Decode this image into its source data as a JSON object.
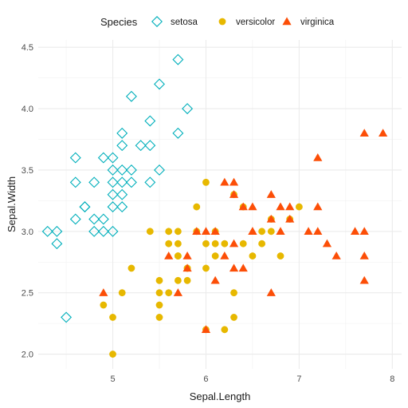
{
  "chart_data": {
    "type": "scatter",
    "xlabel": "Sepal.Length",
    "ylabel": "Sepal.Width",
    "xlim": [
      4.2,
      8.1
    ],
    "ylim": [
      1.88,
      4.56
    ],
    "x_ticks": [
      5,
      6,
      7,
      8
    ],
    "y_ticks": [
      2.0,
      2.5,
      3.0,
      3.5,
      4.0,
      4.5
    ],
    "x_tick_labels": [
      "5",
      "6",
      "7",
      "8"
    ],
    "y_tick_labels": [
      "2.0",
      "2.5",
      "3.0",
      "3.5",
      "4.0",
      "4.5"
    ],
    "grid": true,
    "legend": {
      "title": "Species",
      "position": "top"
    },
    "series": [
      {
        "name": "setosa",
        "color": "#00AFBB",
        "marker": "diamond-open",
        "points": [
          [
            5.1,
            3.5
          ],
          [
            4.9,
            3.0
          ],
          [
            4.7,
            3.2
          ],
          [
            4.6,
            3.1
          ],
          [
            5.0,
            3.6
          ],
          [
            5.4,
            3.9
          ],
          [
            4.6,
            3.4
          ],
          [
            5.0,
            3.4
          ],
          [
            4.4,
            2.9
          ],
          [
            4.9,
            3.1
          ],
          [
            5.4,
            3.7
          ],
          [
            4.8,
            3.4
          ],
          [
            4.8,
            3.0
          ],
          [
            4.3,
            3.0
          ],
          [
            5.8,
            4.0
          ],
          [
            5.7,
            4.4
          ],
          [
            5.1,
            3.8
          ],
          [
            5.7,
            3.8
          ],
          [
            5.2,
            4.1
          ],
          [
            5.5,
            4.2
          ],
          [
            5.2,
            3.5
          ],
          [
            5.0,
            3.2
          ],
          [
            4.4,
            3.0
          ],
          [
            5.1,
            3.4
          ],
          [
            5.0,
            3.5
          ],
          [
            4.5,
            2.3
          ],
          [
            5.1,
            3.3
          ],
          [
            5.5,
            3.5
          ],
          [
            4.9,
            3.6
          ],
          [
            5.4,
            3.4
          ],
          [
            5.3,
            3.7
          ],
          [
            5.0,
            3.3
          ],
          [
            5.1,
            3.7
          ],
          [
            4.8,
            3.1
          ],
          [
            5.2,
            3.4
          ],
          [
            5.0,
            3.0
          ],
          [
            4.7,
            3.2
          ],
          [
            4.6,
            3.6
          ],
          [
            5.1,
            3.2
          ]
        ]
      },
      {
        "name": "versicolor",
        "color": "#E7B800",
        "marker": "circle",
        "points": [
          [
            7.0,
            3.2
          ],
          [
            6.4,
            3.2
          ],
          [
            6.9,
            3.1
          ],
          [
            5.5,
            2.3
          ],
          [
            6.5,
            2.8
          ],
          [
            5.7,
            2.8
          ],
          [
            6.3,
            3.3
          ],
          [
            4.9,
            2.4
          ],
          [
            6.6,
            2.9
          ],
          [
            5.2,
            2.7
          ],
          [
            5.0,
            2.0
          ],
          [
            5.9,
            3.0
          ],
          [
            6.0,
            2.2
          ],
          [
            6.1,
            2.9
          ],
          [
            5.6,
            2.9
          ],
          [
            6.7,
            3.1
          ],
          [
            5.6,
            3.0
          ],
          [
            5.8,
            2.7
          ],
          [
            6.2,
            2.2
          ],
          [
            5.6,
            2.5
          ],
          [
            5.9,
            3.2
          ],
          [
            6.1,
            2.8
          ],
          [
            6.3,
            2.5
          ],
          [
            6.4,
            2.9
          ],
          [
            6.8,
            2.8
          ],
          [
            6.7,
            3.0
          ],
          [
            6.0,
            2.9
          ],
          [
            5.7,
            2.6
          ],
          [
            5.5,
            2.4
          ],
          [
            5.8,
            2.7
          ],
          [
            6.0,
            2.7
          ],
          [
            5.4,
            3.0
          ],
          [
            6.0,
            3.4
          ],
          [
            6.3,
            2.3
          ],
          [
            5.5,
            2.5
          ],
          [
            5.5,
            2.6
          ],
          [
            6.1,
            3.0
          ],
          [
            5.8,
            2.6
          ],
          [
            5.0,
            2.3
          ],
          [
            5.7,
            3.0
          ],
          [
            5.7,
            2.9
          ],
          [
            6.2,
            2.9
          ],
          [
            5.1,
            2.5
          ],
          [
            5.7,
            2.8
          ],
          [
            6.6,
            3.0
          ]
        ]
      },
      {
        "name": "virginica",
        "color": "#FC4E07",
        "marker": "triangle",
        "points": [
          [
            6.3,
            3.3
          ],
          [
            5.8,
            2.7
          ],
          [
            7.1,
            3.0
          ],
          [
            6.3,
            2.9
          ],
          [
            6.5,
            3.0
          ],
          [
            7.6,
            3.0
          ],
          [
            4.9,
            2.5
          ],
          [
            7.3,
            2.9
          ],
          [
            6.7,
            2.5
          ],
          [
            7.2,
            3.6
          ],
          [
            6.5,
            3.2
          ],
          [
            6.4,
            2.7
          ],
          [
            6.8,
            3.0
          ],
          [
            5.7,
            2.5
          ],
          [
            5.8,
            2.8
          ],
          [
            6.4,
            3.2
          ],
          [
            7.7,
            3.8
          ],
          [
            7.7,
            2.6
          ],
          [
            6.0,
            2.2
          ],
          [
            6.9,
            3.2
          ],
          [
            5.6,
            2.8
          ],
          [
            7.7,
            2.8
          ],
          [
            6.3,
            2.7
          ],
          [
            6.7,
            3.3
          ],
          [
            7.2,
            3.2
          ],
          [
            6.2,
            2.8
          ],
          [
            6.1,
            3.0
          ],
          [
            7.2,
            3.0
          ],
          [
            7.4,
            2.8
          ],
          [
            7.9,
            3.8
          ],
          [
            6.1,
            2.6
          ],
          [
            7.7,
            3.0
          ],
          [
            6.3,
            3.4
          ],
          [
            6.0,
            3.0
          ],
          [
            6.9,
            3.1
          ],
          [
            6.7,
            3.1
          ],
          [
            6.8,
            3.2
          ],
          [
            6.2,
            3.4
          ],
          [
            5.9,
            3.0
          ],
          [
            6.5,
            3.0
          ]
        ]
      }
    ]
  }
}
